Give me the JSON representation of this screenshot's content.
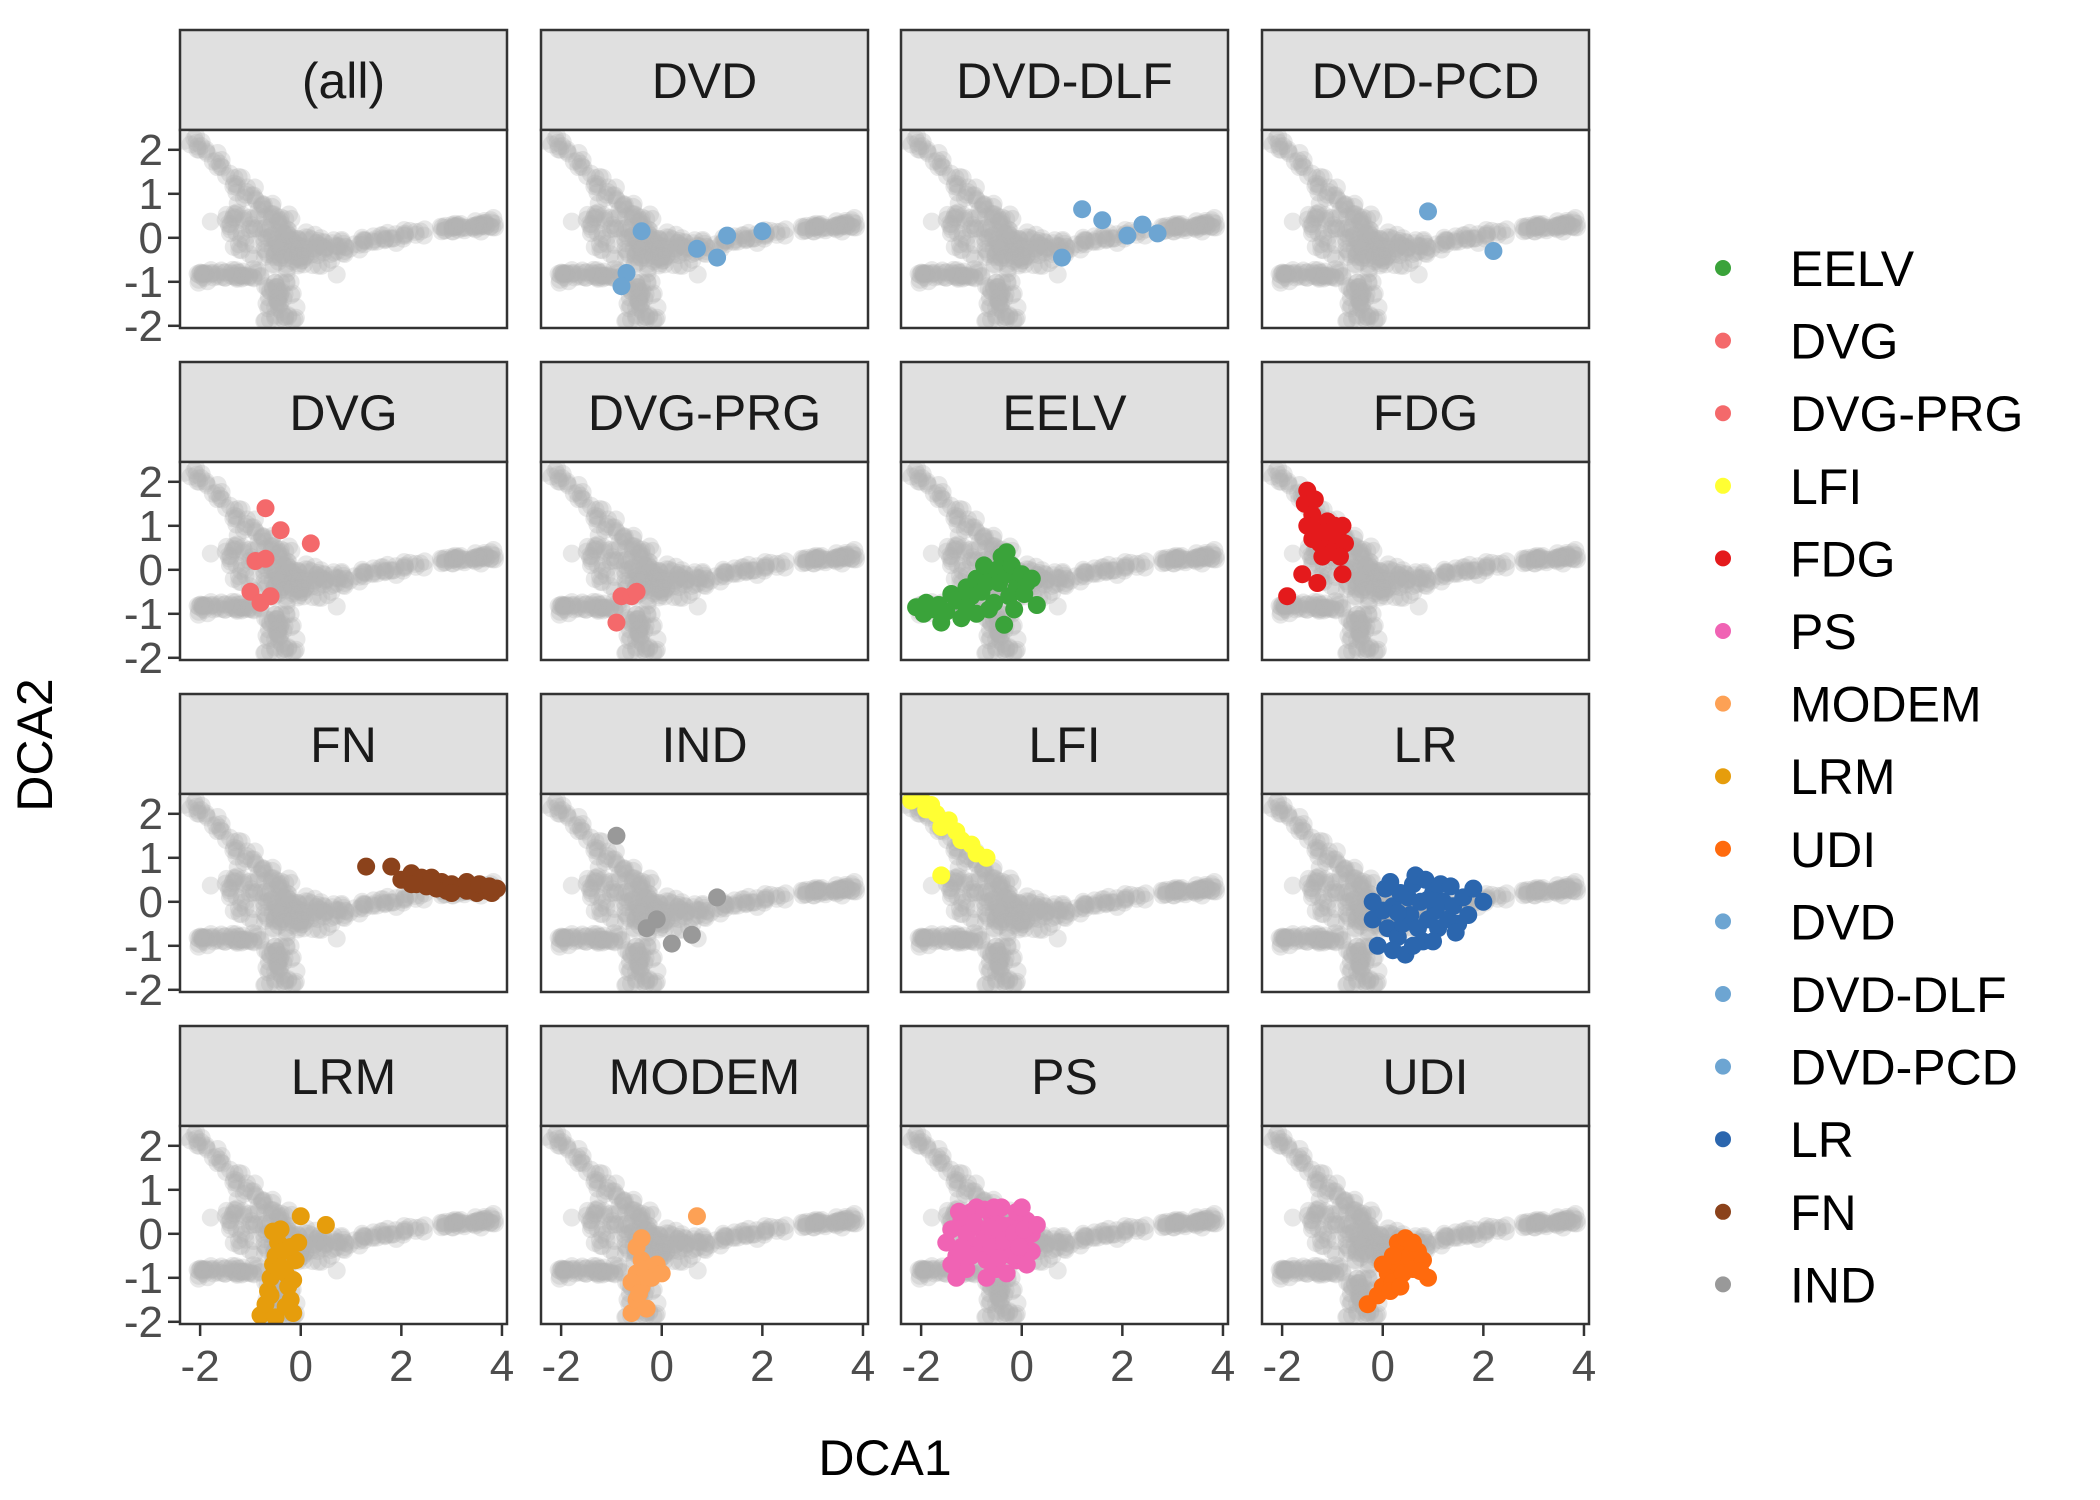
{
  "chart_data": {
    "type": "scatter",
    "facet_layout": "4x4 grid, shared axes",
    "xlabel": "DCA1",
    "ylabel": "DCA2",
    "xlim": [
      -2.4,
      4.1
    ],
    "ylim": [
      -2.05,
      2.45
    ],
    "x_ticks": [
      -2,
      0,
      2,
      4
    ],
    "y_ticks": [
      -2,
      -1,
      0,
      1,
      2
    ],
    "grid": false,
    "legend_position": "right",
    "background_color": "#b3b3b3",
    "background_opacity": 0.3,
    "background_note": "All samples are drawn in light grey in every panel; the highlighted group is drawn on top in its own colour.",
    "legend": [
      {
        "label": "EELV",
        "color": "#3aa33a"
      },
      {
        "label": "DVG",
        "color": "#f4696b"
      },
      {
        "label": "DVG-PRG",
        "color": "#f4696b"
      },
      {
        "label": "LFI",
        "color": "#ffff33"
      },
      {
        "label": "FDG",
        "color": "#e41a1c"
      },
      {
        "label": "PS",
        "color": "#f063b4"
      },
      {
        "label": "MODEM",
        "color": "#fda155"
      },
      {
        "label": "LRM",
        "color": "#e69d0c"
      },
      {
        "label": "UDI",
        "color": "#ff6a0d"
      },
      {
        "label": "DVD",
        "color": "#6da5d2"
      },
      {
        "label": "DVD-DLF",
        "color": "#6da5d2"
      },
      {
        "label": "DVD-PCD",
        "color": "#6da5d2"
      },
      {
        "label": "LR",
        "color": "#2b66ae"
      },
      {
        "label": "FN",
        "color": "#8b421b"
      },
      {
        "label": "IND",
        "color": "#999999"
      }
    ],
    "panels": [
      {
        "title": "(all)",
        "color": "",
        "points": []
      },
      {
        "title": "DVD",
        "color": "#6da5d2",
        "points": [
          [
            -0.4,
            0.15
          ],
          [
            -0.7,
            -0.8
          ],
          [
            -0.8,
            -1.1
          ],
          [
            0.7,
            -0.25
          ],
          [
            1.1,
            -0.45
          ],
          [
            1.3,
            0.05
          ],
          [
            2.0,
            0.15
          ]
        ]
      },
      {
        "title": "DVD-DLF",
        "color": "#6da5d2",
        "points": [
          [
            0.8,
            -0.45
          ],
          [
            1.2,
            0.65
          ],
          [
            1.6,
            0.4
          ],
          [
            2.1,
            0.05
          ],
          [
            2.4,
            0.3
          ],
          [
            2.7,
            0.1
          ]
        ]
      },
      {
        "title": "DVD-PCD",
        "color": "#6da5d2",
        "points": [
          [
            0.9,
            0.6
          ],
          [
            2.2,
            -0.3
          ]
        ]
      },
      {
        "title": "DVG",
        "color": "#f4696b",
        "points": [
          [
            -0.7,
            1.4
          ],
          [
            -0.4,
            0.9
          ],
          [
            0.2,
            0.6
          ],
          [
            -0.9,
            0.2
          ],
          [
            -0.7,
            0.25
          ],
          [
            -1.0,
            -0.5
          ],
          [
            -0.8,
            -0.75
          ],
          [
            -0.6,
            -0.6
          ]
        ]
      },
      {
        "title": "DVG-PRG",
        "color": "#f4696b",
        "points": [
          [
            -0.9,
            -1.2
          ],
          [
            -0.8,
            -0.6
          ],
          [
            -0.6,
            -0.6
          ],
          [
            -0.5,
            -0.5
          ]
        ]
      },
      {
        "title": "EELV",
        "color": "#3aa33a",
        "points": [
          [
            -2.1,
            -0.85
          ],
          [
            -1.95,
            -1.0
          ],
          [
            -1.8,
            -0.9
          ],
          [
            -1.65,
            -0.8
          ],
          [
            -1.5,
            -0.95
          ],
          [
            -1.4,
            -0.55
          ],
          [
            -1.3,
            -0.7
          ],
          [
            -1.2,
            -1.1
          ],
          [
            -1.1,
            -0.4
          ],
          [
            -1.0,
            -0.6
          ],
          [
            -0.9,
            -0.2
          ],
          [
            -0.8,
            -0.5
          ],
          [
            -0.7,
            -0.3
          ],
          [
            -0.6,
            -0.05
          ],
          [
            -0.5,
            0.0
          ],
          [
            -0.45,
            -0.3
          ],
          [
            -0.4,
            0.3
          ],
          [
            -0.3,
            -0.1
          ],
          [
            -0.25,
            -0.6
          ],
          [
            -0.2,
            0.1
          ],
          [
            -0.1,
            -0.4
          ],
          [
            0.0,
            -0.1
          ],
          [
            0.1,
            -0.3
          ],
          [
            0.2,
            -0.2
          ],
          [
            0.3,
            -0.8
          ],
          [
            -0.35,
            -1.25
          ],
          [
            -0.9,
            -1.0
          ],
          [
            -1.6,
            -1.2
          ],
          [
            -0.55,
            -0.75
          ],
          [
            -0.15,
            -0.9
          ],
          [
            -0.75,
            0.1
          ],
          [
            -1.1,
            -0.85
          ],
          [
            -0.3,
            0.4
          ],
          [
            0.05,
            -0.55
          ],
          [
            -1.9,
            -0.75
          ],
          [
            -0.65,
            -0.9
          ]
        ]
      },
      {
        "title": "FDG",
        "color": "#e41a1c",
        "points": [
          [
            -1.9,
            -0.6
          ],
          [
            -1.6,
            -0.1
          ],
          [
            -1.3,
            -0.3
          ],
          [
            -0.8,
            -0.1
          ],
          [
            -1.5,
            1.8
          ],
          [
            -1.55,
            1.5
          ],
          [
            -1.4,
            1.25
          ],
          [
            -1.3,
            0.9
          ],
          [
            -1.25,
            0.6
          ],
          [
            -1.4,
            0.7
          ],
          [
            -1.1,
            1.1
          ],
          [
            -1.05,
            0.7
          ],
          [
            -0.9,
            0.8
          ],
          [
            -0.8,
            1.0
          ],
          [
            -0.75,
            0.6
          ],
          [
            -1.2,
            0.3
          ],
          [
            -1.5,
            1.0
          ],
          [
            -1.35,
            1.6
          ],
          [
            -1.0,
            0.4
          ],
          [
            -0.85,
            0.3
          ],
          [
            -1.15,
            0.85
          ],
          [
            -0.95,
            1.0
          ]
        ]
      },
      {
        "title": "FN",
        "color": "#8b421b",
        "points": [
          [
            1.3,
            0.8
          ],
          [
            1.8,
            0.8
          ],
          [
            2.0,
            0.5
          ],
          [
            2.2,
            0.65
          ],
          [
            2.3,
            0.4
          ],
          [
            2.4,
            0.55
          ],
          [
            2.5,
            0.35
          ],
          [
            2.6,
            0.55
          ],
          [
            2.7,
            0.3
          ],
          [
            2.8,
            0.45
          ],
          [
            2.9,
            0.25
          ],
          [
            3.0,
            0.4
          ],
          [
            3.1,
            0.3
          ],
          [
            3.2,
            0.35
          ],
          [
            3.3,
            0.25
          ],
          [
            3.4,
            0.3
          ],
          [
            3.5,
            0.2
          ],
          [
            3.6,
            0.3
          ],
          [
            3.7,
            0.25
          ],
          [
            3.8,
            0.2
          ],
          [
            3.9,
            0.3
          ],
          [
            2.2,
            0.4
          ],
          [
            2.6,
            0.45
          ],
          [
            3.0,
            0.2
          ],
          [
            3.3,
            0.45
          ],
          [
            3.55,
            0.4
          ],
          [
            3.75,
            0.35
          ]
        ]
      },
      {
        "title": "IND",
        "color": "#999999",
        "points": [
          [
            -0.9,
            1.5
          ],
          [
            1.1,
            0.1
          ],
          [
            -0.1,
            -0.4
          ],
          [
            -0.3,
            -0.6
          ],
          [
            0.2,
            -0.95
          ],
          [
            0.6,
            -0.75
          ]
        ]
      },
      {
        "title": "LFI",
        "color": "#ffff33",
        "points": [
          [
            -2.2,
            2.3
          ],
          [
            -2.0,
            2.35
          ],
          [
            -1.8,
            2.2
          ],
          [
            -1.7,
            2.0
          ],
          [
            -1.6,
            1.7
          ],
          [
            -1.3,
            1.6
          ],
          [
            -1.2,
            1.4
          ],
          [
            -1.0,
            1.3
          ],
          [
            -0.9,
            1.1
          ],
          [
            -0.7,
            1.0
          ],
          [
            -1.6,
            0.6
          ],
          [
            -1.9,
            2.1
          ],
          [
            -1.45,
            1.85
          ]
        ]
      },
      {
        "title": "LR",
        "color": "#2b66ae",
        "points": [
          [
            -0.2,
            -0.4
          ],
          [
            0.0,
            -0.2
          ],
          [
            0.1,
            -0.6
          ],
          [
            0.2,
            -0.1
          ],
          [
            0.3,
            -0.8
          ],
          [
            0.35,
            0.2
          ],
          [
            0.4,
            -0.5
          ],
          [
            0.5,
            0.1
          ],
          [
            0.55,
            -0.3
          ],
          [
            0.6,
            0.4
          ],
          [
            0.7,
            -0.6
          ],
          [
            0.75,
            0.0
          ],
          [
            0.8,
            -0.9
          ],
          [
            0.9,
            -0.4
          ],
          [
            1.0,
            0.2
          ],
          [
            1.05,
            -0.2
          ],
          [
            1.1,
            -0.6
          ],
          [
            1.2,
            0.0
          ],
          [
            1.3,
            -0.4
          ],
          [
            1.4,
            -0.1
          ],
          [
            1.5,
            -0.5
          ],
          [
            1.6,
            0.1
          ],
          [
            1.7,
            -0.3
          ],
          [
            1.8,
            0.3
          ],
          [
            2.0,
            0.0
          ],
          [
            -0.1,
            -1.0
          ],
          [
            0.2,
            -1.1
          ],
          [
            0.45,
            -1.2
          ],
          [
            0.65,
            0.6
          ],
          [
            0.85,
            0.5
          ],
          [
            1.15,
            0.4
          ],
          [
            1.35,
            0.35
          ],
          [
            0.05,
            0.3
          ],
          [
            0.3,
            -0.25
          ],
          [
            0.6,
            -1.0
          ],
          [
            1.0,
            -0.9
          ],
          [
            -0.2,
            0.0
          ],
          [
            0.9,
            0.05
          ],
          [
            1.45,
            -0.7
          ],
          [
            0.15,
            0.45
          ]
        ]
      },
      {
        "title": "LRM",
        "color": "#e69d0c",
        "points": [
          [
            -0.8,
            -1.85
          ],
          [
            -0.7,
            -1.6
          ],
          [
            -0.65,
            -1.3
          ],
          [
            -0.6,
            -1.0
          ],
          [
            -0.55,
            -0.7
          ],
          [
            -0.5,
            -0.5
          ],
          [
            -0.45,
            -0.2
          ],
          [
            -0.4,
            0.1
          ],
          [
            -0.35,
            -0.4
          ],
          [
            -0.3,
            -0.9
          ],
          [
            -0.25,
            -1.2
          ],
          [
            -0.2,
            -1.5
          ],
          [
            -0.15,
            -1.8
          ],
          [
            -0.1,
            -0.6
          ],
          [
            -0.05,
            -0.2
          ],
          [
            0.0,
            0.4
          ],
          [
            0.5,
            0.2
          ],
          [
            -0.5,
            -1.9
          ],
          [
            -0.6,
            -1.4
          ],
          [
            -0.3,
            -1.65
          ],
          [
            -0.2,
            -0.3
          ],
          [
            -0.4,
            -0.75
          ],
          [
            -0.15,
            -1.05
          ],
          [
            -0.55,
            0.05
          ]
        ]
      },
      {
        "title": "MODEM",
        "color": "#fda155",
        "points": [
          [
            -0.6,
            -1.8
          ],
          [
            -0.5,
            -1.5
          ],
          [
            -0.4,
            -1.2
          ],
          [
            -0.5,
            -0.9
          ],
          [
            -0.4,
            -0.6
          ],
          [
            -0.3,
            -0.8
          ],
          [
            -0.2,
            -1.0
          ],
          [
            -0.1,
            -0.7
          ],
          [
            0.0,
            -0.9
          ],
          [
            -0.5,
            -0.3
          ],
          [
            -0.4,
            -0.1
          ],
          [
            0.7,
            0.4
          ],
          [
            -0.3,
            -1.7
          ],
          [
            -0.6,
            -1.1
          ],
          [
            -0.45,
            -1.35
          ]
        ]
      },
      {
        "title": "PS",
        "color": "#f063b4",
        "points": [
          [
            -1.5,
            -0.2
          ],
          [
            -1.4,
            0.1
          ],
          [
            -1.3,
            -0.5
          ],
          [
            -1.2,
            0.3
          ],
          [
            -1.1,
            -0.8
          ],
          [
            -1.0,
            0.5
          ],
          [
            -0.9,
            -0.3
          ],
          [
            -0.8,
            0.1
          ],
          [
            -0.7,
            -0.6
          ],
          [
            -0.6,
            0.4
          ],
          [
            -0.5,
            -0.1
          ],
          [
            -0.4,
            0.6
          ],
          [
            -0.3,
            -0.4
          ],
          [
            -0.2,
            0.2
          ],
          [
            -0.1,
            0.5
          ],
          [
            0.0,
            -0.2
          ],
          [
            0.1,
            0.3
          ],
          [
            0.2,
            0.0
          ],
          [
            -1.3,
            -1.0
          ],
          [
            -1.1,
            0.0
          ],
          [
            -0.9,
            0.6
          ],
          [
            -0.7,
            -1.0
          ],
          [
            -0.5,
            -0.8
          ],
          [
            -0.3,
            -0.9
          ],
          [
            -0.1,
            -0.6
          ],
          [
            0.0,
            0.6
          ],
          [
            0.2,
            -0.4
          ],
          [
            -1.0,
            -0.5
          ],
          [
            -0.8,
            -0.2
          ],
          [
            -0.6,
            -0.3
          ],
          [
            -0.4,
            0.2
          ],
          [
            -0.2,
            -0.5
          ],
          [
            0.1,
            -0.7
          ],
          [
            -1.4,
            -0.7
          ],
          [
            -1.2,
            -0.3
          ],
          [
            -0.95,
            0.25
          ],
          [
            -0.65,
            0.15
          ],
          [
            -0.35,
            -0.15
          ],
          [
            -0.15,
            0.0
          ],
          [
            0.05,
            0.1
          ],
          [
            0.3,
            0.2
          ],
          [
            -1.25,
            0.5
          ],
          [
            -0.75,
            0.55
          ],
          [
            -0.45,
            -0.55
          ],
          [
            -0.55,
            0.6
          ],
          [
            -0.05,
            -0.3
          ]
        ]
      },
      {
        "title": "UDI",
        "color": "#ff6a0d",
        "points": [
          [
            -0.3,
            -1.6
          ],
          [
            -0.1,
            -1.4
          ],
          [
            0.0,
            -1.2
          ],
          [
            0.1,
            -0.9
          ],
          [
            0.2,
            -1.1
          ],
          [
            0.3,
            -0.7
          ],
          [
            0.4,
            -0.9
          ],
          [
            0.5,
            -0.5
          ],
          [
            0.6,
            -0.8
          ],
          [
            0.7,
            -0.4
          ],
          [
            0.8,
            -0.6
          ],
          [
            0.9,
            -1.0
          ],
          [
            0.3,
            -0.2
          ],
          [
            0.45,
            -0.1
          ],
          [
            0.2,
            -0.5
          ],
          [
            0.6,
            -0.2
          ],
          [
            0.15,
            -1.3
          ],
          [
            0.75,
            -0.85
          ],
          [
            0.0,
            -0.7
          ],
          [
            0.35,
            -1.2
          ]
        ]
      }
    ]
  }
}
